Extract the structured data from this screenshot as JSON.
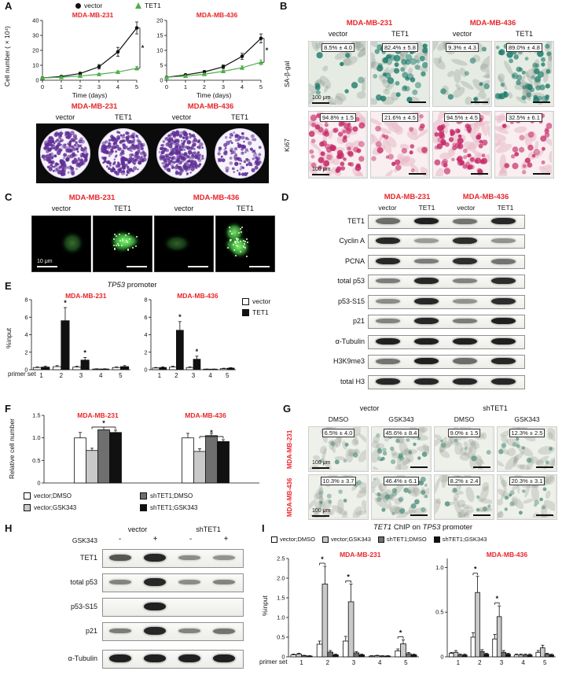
{
  "colors": {
    "accent_red": "#e8262b",
    "tet1_green": "#4fae4a",
    "bar_white": "#ffffff",
    "bar_lightgray": "#c9c9c9",
    "bar_darkgray": "#6f6f6f",
    "bar_black": "#111111",
    "colony_purple": "#5f2f96",
    "ki67_magenta": "#c62a68",
    "sabgal_teal": "#1e7d6c",
    "fluor_green": "#52e052"
  },
  "panelA": {
    "label": "A",
    "legend": [
      {
        "label": "vector"
      },
      {
        "label": "TET1"
      }
    ],
    "colony": {
      "headers": [
        "MDA-MB-231",
        "MDA-MB-436"
      ],
      "conditions": [
        "vector",
        "TET1",
        "vector",
        "TET1"
      ],
      "wells": [
        {
          "density": 0.8
        },
        {
          "density": 0.85
        },
        {
          "density": 0.9
        },
        {
          "density": 0.3
        }
      ]
    }
  },
  "panelB": {
    "label": "B",
    "headers": [
      "MDA-MB-231",
      "MDA-MB-436"
    ],
    "col_labels": [
      "vector",
      "TET1",
      "vector",
      "TET1"
    ],
    "row_labels": [
      "SA-β-gal",
      "Ki67"
    ],
    "scale_bar": "100 μm",
    "rows": [
      {
        "tiles": [
          {
            "stain": "sabgal",
            "label": "8.5% ± 4.0",
            "level": 0.085
          },
          {
            "stain": "sabgal",
            "label": "82.4% ± 5.8",
            "level": 0.824
          },
          {
            "stain": "sabgal",
            "label": "9.3% ± 4.3",
            "level": 0.093
          },
          {
            "stain": "sabgal",
            "label": "89.0% ± 4.8",
            "level": 0.89
          }
        ]
      },
      {
        "tiles": [
          {
            "stain": "ki67",
            "label": "94.8% ± 1.5",
            "level": 0.948
          },
          {
            "stain": "ki67",
            "label": "21.6% ± 4.5",
            "level": 0.216
          },
          {
            "stain": "ki67",
            "label": "94.5% ± 4.5",
            "level": 0.945
          },
          {
            "stain": "ki67",
            "label": "32.5% ± 6.1",
            "level": 0.325
          }
        ]
      }
    ]
  },
  "panelC": {
    "label": "C",
    "headers": [
      "MDA-MB-231",
      "MDA-MB-436"
    ],
    "col_labels": [
      "vector",
      "TET1",
      "vector",
      "TET1"
    ],
    "scale_bar": "10 μm",
    "tiles": [
      {
        "stain": "fluor",
        "brightness": 0.45,
        "nuclei": 1
      },
      {
        "stain": "fluor",
        "brightness": 1,
        "nuclei": 2
      },
      {
        "stain": "fluor",
        "brightness": 0.4,
        "nuclei": 1
      },
      {
        "stain": "fluor",
        "brightness": 0.95,
        "nuclei": 3
      }
    ]
  },
  "panelD": {
    "label": "D",
    "headers": [
      "MDA-MB-231",
      "MDA-MB-436"
    ],
    "lane_labels": [
      "vector",
      "TET1",
      "vector",
      "TET1"
    ],
    "blots": [
      {
        "label": "TET1",
        "lanes": [
          0.45,
          0.95,
          0.4,
          0.9
        ]
      },
      {
        "label": "Cyclin A",
        "lanes": [
          0.9,
          0.15,
          0.85,
          0.2
        ]
      },
      {
        "label": "PCNA",
        "lanes": [
          0.9,
          0.35,
          0.85,
          0.4
        ]
      },
      {
        "label": "total p53",
        "lanes": [
          0.35,
          0.9,
          0.3,
          0.85
        ]
      },
      {
        "label": "p53-S15",
        "lanes": [
          0.25,
          0.9,
          0.2,
          0.85
        ]
      },
      {
        "label": "p21",
        "lanes": [
          0.3,
          0.9,
          0.35,
          0.95
        ]
      },
      {
        "label": "α-Tubulin",
        "lanes": [
          0.95,
          0.95,
          0.95,
          0.95
        ]
      },
      {
        "label": "H3K9me3",
        "lanes": [
          0.4,
          0.95,
          0.45,
          0.9
        ]
      },
      {
        "label": "total H3",
        "lanes": [
          0.9,
          0.9,
          0.9,
          0.9
        ]
      }
    ]
  },
  "panelE": {
    "label": "E",
    "title_gene": "TP53",
    "title_rest": " promoter",
    "legend": [
      {
        "label": "vector",
        "color": "#ffffff"
      },
      {
        "label": "TET1",
        "color": "#111111"
      }
    ],
    "xlabel": "primer set"
  },
  "panelF": {
    "label": "F",
    "legend": [
      {
        "label": "vector;DMSO",
        "color": "#ffffff"
      },
      {
        "label": "vector;GSK343",
        "color": "#c9c9c9"
      },
      {
        "label": "shTET1;DMSO",
        "color": "#6f6f6f"
      },
      {
        "label": "shTET1;GSK343",
        "color": "#111111"
      }
    ]
  },
  "panelG": {
    "label": "G",
    "headers": [
      "vector",
      "shTET1"
    ],
    "col_labels": [
      "DMSO",
      "GSK343",
      "DMSO",
      "GSK343"
    ],
    "row_labels": [
      "MDA-MB-231",
      "MDA-MB-436"
    ],
    "scale_bar": "100 μm",
    "rows": [
      {
        "tiles": [
          {
            "stain": "sabgal_light",
            "label": "6.5% ± 4.0",
            "level": 0.065
          },
          {
            "stain": "sabgal_light",
            "label": "45.6% ± 8.4",
            "level": 0.456
          },
          {
            "stain": "sabgal_light",
            "label": "9.0% ± 1.5",
            "level": 0.09
          },
          {
            "stain": "sabgal_light",
            "label": "12.3% ± 2.5",
            "level": 0.123
          }
        ]
      },
      {
        "tiles": [
          {
            "stain": "sabgal_light",
            "label": "10.3% ± 3.7",
            "level": 0.103
          },
          {
            "stain": "sabgal_light",
            "label": "46.4% ± 6.1",
            "level": 0.464
          },
          {
            "stain": "sabgal_light",
            "label": "8.2% ± 2.4",
            "level": 0.082
          },
          {
            "stain": "sabgal_light",
            "label": "20.3% ± 3.1",
            "level": 0.203
          }
        ]
      }
    ]
  },
  "panelH": {
    "label": "H",
    "headers": [
      "vector",
      "shTET1"
    ],
    "treatment_label": "GSK343",
    "treatment_signs": [
      "-",
      "+",
      "-",
      "+"
    ],
    "blots": [
      {
        "label": "TET1",
        "lanes": [
          0.6,
          0.9,
          0.25,
          0.2
        ]
      },
      {
        "label": "total p53",
        "lanes": [
          0.3,
          0.9,
          0.25,
          0.3
        ]
      },
      {
        "label": "p53-S15",
        "lanes": [
          0.05,
          0.95,
          0.05,
          0.05
        ]
      },
      {
        "label": "p21",
        "lanes": [
          0.35,
          0.9,
          0.3,
          0.4
        ]
      },
      {
        "label": "α-Tubulin",
        "lanes": [
          0.95,
          0.95,
          0.95,
          0.95
        ]
      }
    ]
  },
  "panelI": {
    "label": "I",
    "title_parts": {
      "t1": "TET1",
      "mid": " ChIP on ",
      "gene": "TP53",
      "rest": " promoter"
    },
    "legend": [
      {
        "label": "vector;DMSO",
        "color": "#ffffff"
      },
      {
        "label": "vector;GSK343",
        "color": "#c9c9c9"
      },
      {
        "label": "shTET1;DMSO",
        "color": "#6f6f6f"
      },
      {
        "label": "shTET1;GSK343",
        "color": "#111111"
      }
    ],
    "xlabel": "primer set"
  },
  "chart_data": [
    {
      "id": "growth-231",
      "type": "line",
      "title": "MDA-MB-231",
      "xlabel": "Time (days)",
      "ylabel": "Cell number (×10⁴)",
      "x": [
        0,
        1,
        2,
        3,
        4,
        5
      ],
      "xlim": [
        0,
        5
      ],
      "ylim": [
        0,
        40
      ],
      "yticks": [
        0,
        10,
        20,
        30,
        40
      ],
      "ml": 20,
      "series": [
        {
          "name": "vector",
          "marker": "circle",
          "color": "#111111",
          "values": [
            1.5,
            2.5,
            4.5,
            9,
            19,
            35
          ],
          "err": [
            0.3,
            0.4,
            0.8,
            1.5,
            3,
            4
          ]
        },
        {
          "name": "TET1",
          "marker": "triangle",
          "color": "#4fae4a",
          "values": [
            1.5,
            2,
            2.8,
            4,
            5.5,
            8
          ],
          "err": [
            0.2,
            0.3,
            0.4,
            0.5,
            0.8,
            1.2
          ]
        }
      ],
      "sig": "*"
    },
    {
      "id": "growth-436",
      "type": "line",
      "title": "MDA-MB-436",
      "xlabel": "Time (days)",
      "ylabel": "Cell number (×10⁴)",
      "x": [
        0,
        1,
        2,
        3,
        4,
        5
      ],
      "xlim": [
        0,
        5
      ],
      "ylim": [
        0,
        20
      ],
      "yticks": [
        0,
        5,
        10,
        15,
        20
      ],
      "ml": 20,
      "series": [
        {
          "name": "vector",
          "marker": "circle",
          "color": "#111111",
          "values": [
            1,
            1.8,
            2.8,
            4.5,
            8,
            14
          ],
          "err": [
            0.2,
            0.3,
            0.4,
            0.6,
            1,
            1.5
          ]
        },
        {
          "name": "TET1",
          "marker": "triangle",
          "color": "#4fae4a",
          "values": [
            1,
            1.4,
            2,
            3,
            4.2,
            6
          ],
          "err": [
            0.2,
            0.2,
            0.3,
            0.4,
            0.6,
            0.8
          ]
        }
      ],
      "sig": "*"
    },
    {
      "id": "chip-e-231",
      "type": "bar",
      "title": "MDA-MB-231",
      "ylabel": "%input",
      "xlabel": "primer set",
      "categories": [
        "1",
        "2",
        "3",
        "4",
        "5"
      ],
      "ylim": [
        0,
        8
      ],
      "yticks": [
        0,
        2,
        4,
        6,
        8
      ],
      "ml": 16,
      "series": [
        {
          "name": "vector",
          "color": "#ffffff",
          "values": [
            0.25,
            0.35,
            0.3,
            0.08,
            0.25
          ],
          "err": [
            0.08,
            0.12,
            0.1,
            0.03,
            0.08
          ]
        },
        {
          "name": "TET1",
          "color": "#111111",
          "values": [
            0.3,
            5.6,
            1.1,
            0.08,
            0.35
          ],
          "err": [
            0.1,
            1.5,
            0.3,
            0.03,
            0.12
          ]
        }
      ],
      "annotations": [
        {
          "cat": 1,
          "label": "*"
        },
        {
          "cat": 2,
          "label": "*"
        }
      ]
    },
    {
      "id": "chip-e-436",
      "type": "bar",
      "title": "MDA-MB-436",
      "ylabel": "%input",
      "xlabel": "primer set",
      "categories": [
        "1",
        "2",
        "3",
        "4",
        "5"
      ],
      "ylim": [
        0,
        8
      ],
      "yticks": [
        0,
        2,
        4,
        6,
        8
      ],
      "ml": 16,
      "series": [
        {
          "name": "vector",
          "color": "#ffffff",
          "values": [
            0.2,
            0.3,
            0.25,
            0.06,
            0.12
          ],
          "err": [
            0.06,
            0.1,
            0.08,
            0.02,
            0.05
          ]
        },
        {
          "name": "TET1",
          "color": "#111111",
          "values": [
            0.25,
            4.5,
            1.2,
            0.06,
            0.18
          ],
          "err": [
            0.08,
            1,
            0.35,
            0.02,
            0.06
          ]
        }
      ],
      "annotations": [
        {
          "cat": 1,
          "label": "*"
        },
        {
          "cat": 2,
          "label": "*"
        }
      ]
    },
    {
      "id": "cellnum-f",
      "type": "bar",
      "ylabel": "Relative cell number",
      "categories": [
        "MDA-MB-231",
        "MDA-MB-436"
      ],
      "cat_top": true,
      "ylim": [
        0,
        1.5
      ],
      "yticks": [
        0,
        0.5,
        1,
        1.5
      ],
      "ml": 26,
      "series": [
        {
          "name": "vector;DMSO",
          "color": "#ffffff",
          "values": [
            1,
            1
          ],
          "err": [
            0.12,
            0.1
          ]
        },
        {
          "name": "vector;GSK343",
          "color": "#c9c9c9",
          "values": [
            0.72,
            0.7
          ],
          "err": [
            0.05,
            0.06
          ]
        },
        {
          "name": "shTET1;DMSO",
          "color": "#6f6f6f",
          "values": [
            1.18,
            1.05
          ],
          "err": [
            0.06,
            0.05
          ]
        },
        {
          "name": "shTET1;GSK343",
          "color": "#111111",
          "values": [
            1.12,
            0.92
          ],
          "err": [
            0.05,
            0.04
          ]
        }
      ],
      "annotations": [
        {
          "cat": 0,
          "between": [
            1,
            3
          ],
          "label": "*"
        },
        {
          "cat": 1,
          "between": [
            1,
            3
          ],
          "label": "*"
        }
      ]
    },
    {
      "id": "chip-i-231",
      "type": "bar",
      "title": "MDA-MB-231",
      "ylabel": "%input",
      "xlabel": "primer set",
      "categories": [
        "1",
        "2",
        "3",
        "4",
        "5"
      ],
      "ylim": [
        0,
        2.5
      ],
      "yticks": [
        0,
        0.5,
        1,
        1.5,
        2,
        2.5
      ],
      "ml": 22,
      "series": [
        {
          "name": "vector;DMSO",
          "color": "#ffffff",
          "values": [
            0.05,
            0.32,
            0.4,
            0.02,
            0.15
          ],
          "err": [
            0.02,
            0.08,
            0.12,
            0.01,
            0.05
          ]
        },
        {
          "name": "vector;GSK343",
          "color": "#c9c9c9",
          "values": [
            0.07,
            1.85,
            1.4,
            0.03,
            0.33
          ],
          "err": [
            0.02,
            0.45,
            0.45,
            0.01,
            0.1
          ]
        },
        {
          "name": "shTET1;DMSO",
          "color": "#6f6f6f",
          "values": [
            0.03,
            0.12,
            0.1,
            0.02,
            0.08
          ],
          "err": [
            0.01,
            0.04,
            0.03,
            0.01,
            0.03
          ]
        },
        {
          "name": "shTET1;GSK343",
          "color": "#111111",
          "values": [
            0.02,
            0.05,
            0.05,
            0.02,
            0.05
          ],
          "err": [
            0.01,
            0.02,
            0.02,
            0.01,
            0.02
          ]
        }
      ],
      "annotations": [
        {
          "cat": 1,
          "between": [
            0,
            1
          ],
          "label": "*"
        },
        {
          "cat": 2,
          "between": [
            0,
            1
          ],
          "label": "*"
        },
        {
          "cat": 4,
          "between": [
            0,
            1
          ],
          "label": "*"
        }
      ]
    },
    {
      "id": "chip-i-436",
      "type": "bar",
      "title": "MDA-MB-436",
      "ylabel": "%input",
      "xlabel": "primer set",
      "categories": [
        "1",
        "2",
        "3",
        "4",
        "5"
      ],
      "ylim": [
        0,
        1.1
      ],
      "yticks": [
        0,
        0.5,
        1
      ],
      "ml": 22,
      "series": [
        {
          "name": "vector;DMSO",
          "color": "#ffffff",
          "values": [
            0.04,
            0.22,
            0.2,
            0.02,
            0.05
          ],
          "err": [
            0.01,
            0.05,
            0.05,
            0.01,
            0.02
          ]
        },
        {
          "name": "vector;GSK343",
          "color": "#c9c9c9",
          "values": [
            0.05,
            0.72,
            0.45,
            0.02,
            0.1
          ],
          "err": [
            0.02,
            0.18,
            0.12,
            0.01,
            0.03
          ]
        },
        {
          "name": "shTET1;DMSO",
          "color": "#6f6f6f",
          "values": [
            0.02,
            0.06,
            0.05,
            0.02,
            0.03
          ],
          "err": [
            0.01,
            0.02,
            0.02,
            0.01,
            0.01
          ]
        },
        {
          "name": "shTET1;GSK343",
          "color": "#111111",
          "values": [
            0.02,
            0.03,
            0.03,
            0.02,
            0.02
          ],
          "err": [
            0.01,
            0.01,
            0.01,
            0.01,
            0.01
          ]
        }
      ],
      "annotations": [
        {
          "cat": 1,
          "between": [
            0,
            1
          ],
          "label": "*"
        },
        {
          "cat": 2,
          "between": [
            0,
            1
          ],
          "label": "*"
        }
      ]
    }
  ]
}
